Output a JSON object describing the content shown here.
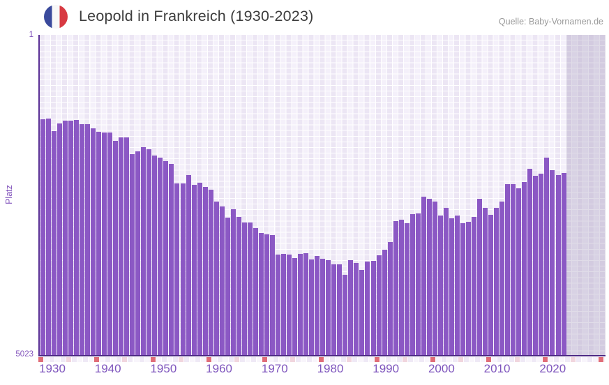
{
  "header": {
    "title": "Leopold in Frankreich (1930-2023)",
    "source": "Quelle: Baby-Vornamen.de"
  },
  "axes": {
    "y_label": "Platz",
    "y_top_tick": "1",
    "y_bottom_tick": "5023"
  },
  "colors": {
    "bar": "#8b58c4",
    "axis_line": "#5a3096",
    "x_axis_line": "#4e2b85",
    "tick_label": "#8051bb",
    "title_text": "#3d3d3d",
    "source_text": "#9a9a9a",
    "marker_red": "#e06d78",
    "marker_pink": "#f1d6de",
    "strip_even": "#efe9f6",
    "strip_odd": "#f8f5fb",
    "flag_blue": "#3a4a9c",
    "flag_red": "#d83a42"
  },
  "chart_data": {
    "type": "bar",
    "title": "Leopold in Frankreich (1930-2023)",
    "ylabel": "Platz",
    "y_axis": {
      "min": 1,
      "max": 5023,
      "inverted": true,
      "note": "rank 1 at top, bars drawn from bottom up to rank"
    },
    "x_ticks": [
      1930,
      1940,
      1950,
      1960,
      1970,
      1980,
      1990,
      2000,
      2010,
      2020
    ],
    "x": [
      1930,
      1931,
      1932,
      1933,
      1934,
      1935,
      1936,
      1937,
      1938,
      1939,
      1940,
      1941,
      1942,
      1943,
      1944,
      1945,
      1946,
      1947,
      1948,
      1949,
      1950,
      1951,
      1952,
      1953,
      1954,
      1955,
      1956,
      1957,
      1958,
      1959,
      1960,
      1961,
      1962,
      1963,
      1964,
      1965,
      1966,
      1967,
      1968,
      1969,
      1970,
      1971,
      1972,
      1973,
      1974,
      1975,
      1976,
      1977,
      1978,
      1979,
      1980,
      1981,
      1982,
      1983,
      1984,
      1985,
      1986,
      1987,
      1988,
      1989,
      1990,
      1991,
      1992,
      1993,
      1994,
      1995,
      1996,
      1997,
      1998,
      1999,
      2000,
      2001,
      2002,
      2003,
      2004,
      2005,
      2006,
      2007,
      2008,
      2009,
      2010,
      2011,
      2012,
      2013,
      2014,
      2015,
      2016,
      2017,
      2018,
      2019,
      2020,
      2021,
      2022,
      2023
    ],
    "series": [
      {
        "name": "Platz",
        "values": [
          1330,
          1315,
          1510,
          1385,
          1345,
          1345,
          1335,
          1405,
          1405,
          1465,
          1525,
          1535,
          1535,
          1660,
          1605,
          1605,
          1870,
          1825,
          1760,
          1800,
          1895,
          1925,
          1980,
          2025,
          2330,
          2330,
          2200,
          2355,
          2325,
          2385,
          2435,
          2615,
          2690,
          2870,
          2735,
          2855,
          2945,
          2945,
          3030,
          3110,
          3135,
          3145,
          3445,
          3435,
          3445,
          3500,
          3440,
          3430,
          3525,
          3470,
          3515,
          3540,
          3600,
          3600,
          3770,
          3540,
          3575,
          3685,
          3555,
          3550,
          3460,
          3375,
          3245,
          2920,
          2900,
          2960,
          2815,
          2800,
          2540,
          2570,
          2615,
          2835,
          2715,
          2880,
          2835,
          2960,
          2935,
          2855,
          2570,
          2710,
          2825,
          2710,
          2615,
          2340,
          2340,
          2410,
          2310,
          2105,
          2210,
          2175,
          1925,
          2120,
          2200,
          2165
        ]
      }
    ],
    "future_region_shaded": true,
    "legend": "none",
    "grid": true
  }
}
